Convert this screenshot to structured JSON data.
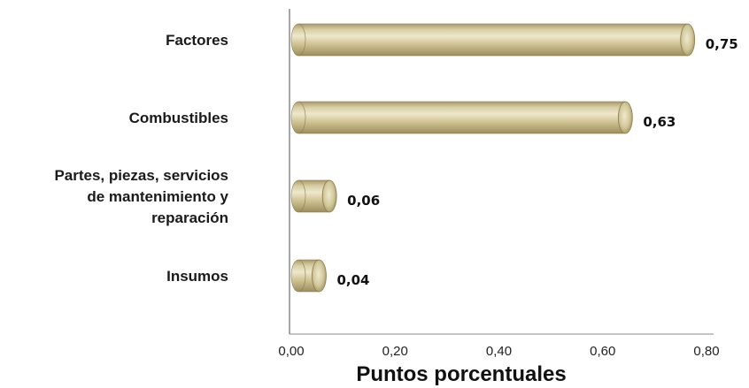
{
  "chart_data": {
    "type": "bar",
    "orientation": "horizontal",
    "categories": [
      "Factores",
      "Combustibles",
      "Partes, piezas, servicios de mantenimiento y reparación",
      "Insumos"
    ],
    "category_label_lines": [
      [
        "Factores"
      ],
      [
        "Combustibles"
      ],
      [
        "Partes, piezas, servicios",
        "de mantenimiento y",
        "reparación"
      ],
      [
        "Insumos"
      ]
    ],
    "values": [
      0.75,
      0.63,
      0.06,
      0.04
    ],
    "data_labels": [
      "0,75",
      "0,63",
      "0,06",
      "0,04"
    ],
    "xlabel": "Puntos porcentuales",
    "xlim": [
      0,
      0.8
    ],
    "x_ticks": [
      0,
      0.2,
      0.4,
      0.6,
      0.8
    ],
    "x_tick_labels": [
      "0,00",
      "0,20",
      "0,40",
      "0,60",
      "0,80"
    ],
    "grid": false,
    "bar_color": "#cfc395",
    "bar_edge_color": "#8a7d4e"
  }
}
